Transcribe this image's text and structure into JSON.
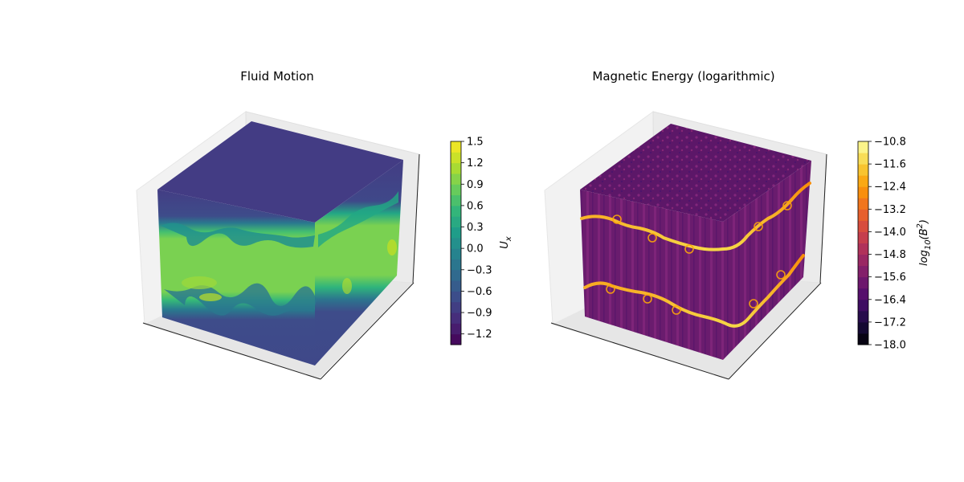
{
  "chart_data": [
    {
      "type": "heatmap",
      "subtype": "3d-volume-contour",
      "title": "Fluid Motion",
      "variable": "U_x",
      "colormap": "viridis",
      "colorbar": {
        "label_base": "U",
        "label_sub": "x",
        "levels": [
          -1.35,
          -1.2,
          -1.05,
          -0.9,
          -0.75,
          -0.6,
          -0.45,
          -0.3,
          -0.15,
          0.0,
          0.15,
          0.3,
          0.45,
          0.6,
          0.75,
          0.9,
          1.05,
          1.2,
          1.35,
          1.5
        ],
        "ticks": [
          -1.2,
          -0.9,
          -0.6,
          -0.3,
          0.0,
          0.3,
          0.6,
          0.9,
          1.2,
          1.5
        ],
        "tick_labels": [
          "−1.2",
          "−0.9",
          "−0.6",
          "−0.3",
          "0.0",
          "0.3",
          "0.6",
          "0.9",
          "1.2",
          "1.5"
        ],
        "range": [
          -1.35,
          1.5
        ]
      },
      "description_values": {
        "background_level": -1.0,
        "shear_layer_level": 1.0
      }
    },
    {
      "type": "heatmap",
      "subtype": "3d-volume-contour",
      "title": "Magnetic Energy (logarithmic)",
      "variable": "log10(B^2)",
      "colormap": "inferno",
      "colorbar": {
        "label_prefix": "log",
        "label_sub": "10",
        "label_mid": "(B",
        "label_sup": "2",
        "label_suffix": ")",
        "levels": [
          -18.0,
          -17.6,
          -17.2,
          -16.8,
          -16.4,
          -16.0,
          -15.6,
          -15.2,
          -14.8,
          -14.4,
          -14.0,
          -13.6,
          -13.2,
          -12.8,
          -12.4,
          -12.0,
          -11.6,
          -11.2,
          -10.8
        ],
        "ticks": [
          -18.0,
          -17.2,
          -16.4,
          -15.6,
          -14.8,
          -14.0,
          -13.2,
          -12.4,
          -11.6,
          -10.8
        ],
        "tick_labels": [
          "−18.0",
          "−17.2",
          "−16.4",
          "−15.6",
          "−14.8",
          "−14.0",
          "−13.2",
          "−12.4",
          "−11.6",
          "−10.8"
        ],
        "range": [
          -18.0,
          -10.8
        ]
      },
      "description_values": {
        "background_level": -15.2,
        "filament_level": -11.6
      }
    }
  ]
}
